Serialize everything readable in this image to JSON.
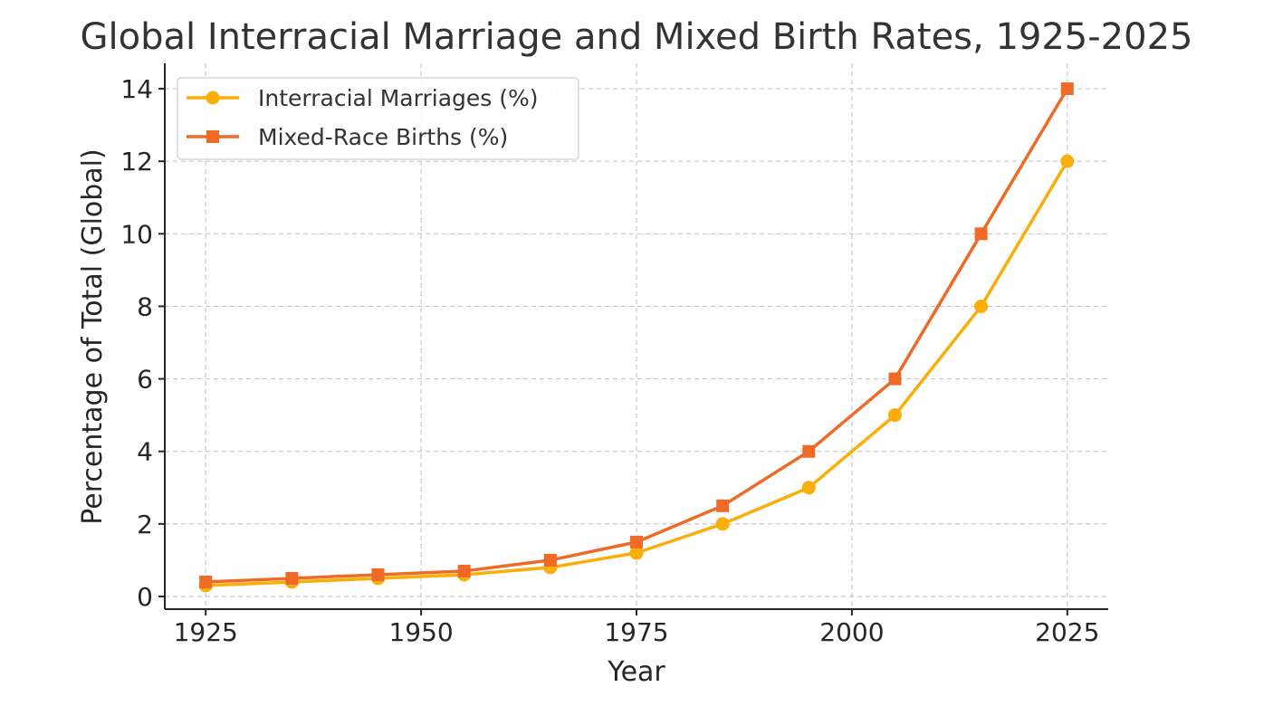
{
  "chart_data": {
    "type": "line",
    "title": "Global Interracial Marriage and Mixed Birth Rates, 1925-2025",
    "xlabel": "Year",
    "ylabel": "Percentage of Total (Global)",
    "x": [
      1925,
      1935,
      1945,
      1955,
      1965,
      1975,
      1985,
      1995,
      2005,
      2015,
      2025
    ],
    "xlim": [
      1920.25,
      2029.75
    ],
    "ylim": [
      -0.35,
      14.7
    ],
    "xticks": [
      1925,
      1950,
      1975,
      2000,
      2025
    ],
    "yticks": [
      0,
      2,
      4,
      6,
      8,
      10,
      12,
      14
    ],
    "grid": true,
    "legend_position": "top-left",
    "series": [
      {
        "name": "Interracial Marriages (%)",
        "color": "#F9AE0A",
        "marker": "circle",
        "values": [
          0.3,
          0.4,
          0.5,
          0.6,
          0.8,
          1.2,
          2.0,
          3.0,
          5.0,
          8.0,
          12.0
        ]
      },
      {
        "name": "Mixed-Race Births (%)",
        "color": "#EE6A26",
        "marker": "square",
        "values": [
          0.4,
          0.5,
          0.6,
          0.7,
          1.0,
          1.5,
          2.5,
          4.0,
          6.0,
          10.0,
          14.0
        ]
      }
    ]
  }
}
